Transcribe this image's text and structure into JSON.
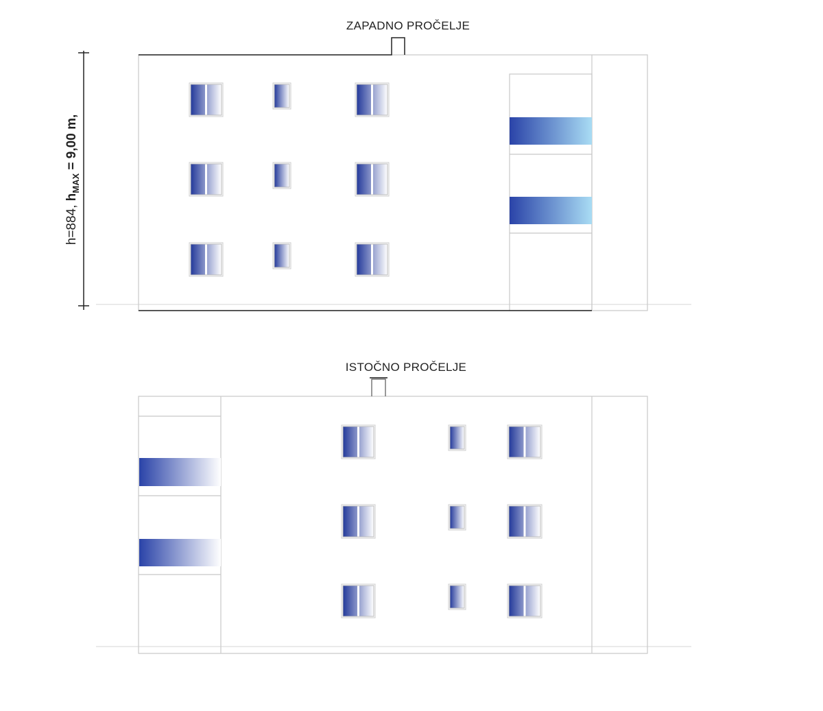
{
  "west": {
    "title": "ZAPADNO PROČELJE",
    "height_label": {
      "prefix": "h=884, ",
      "h": "h",
      "subscript": "MAX",
      "suffix": " = 9,00 m,"
    }
  },
  "east": {
    "title": "ISTOČNO PROČELJE"
  }
}
